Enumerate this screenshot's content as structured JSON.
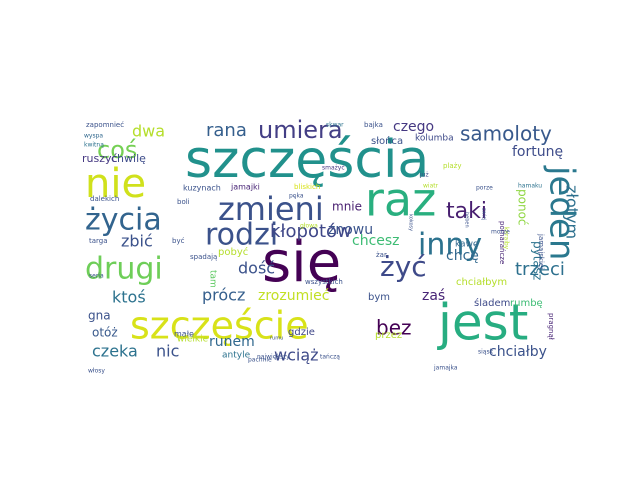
{
  "words": [
    {
      "text": "szczęścia",
      "color": "#21918c",
      "rotate": false
    },
    {
      "text": "się",
      "color": "#440154",
      "rotate": false
    },
    {
      "text": "jest",
      "color": "#27ad81",
      "rotate": false
    },
    {
      "text": "szczęście",
      "color": "#d8e219",
      "rotate": false
    },
    {
      "text": "raz",
      "color": "#29af7f",
      "rotate": false
    },
    {
      "text": "nie",
      "color": "#d0e11c",
      "rotate": false
    },
    {
      "text": "jeden",
      "color": "#2a788e",
      "rotate": true
    },
    {
      "text": "życia",
      "color": "#32648e",
      "rotate": false
    },
    {
      "text": "drugi",
      "color": "#6ece58",
      "rotate": false
    },
    {
      "text": "zmieni",
      "color": "#3b528b",
      "rotate": false
    },
    {
      "text": "rodzi",
      "color": "#3b528b",
      "rotate": false
    },
    {
      "text": "inny",
      "color": "#2c728e",
      "rotate": false
    },
    {
      "text": "umiera",
      "color": "#433e85",
      "rotate": false
    },
    {
      "text": "coś",
      "color": "#75d054",
      "rotate": false
    },
    {
      "text": "żyć",
      "color": "#3e4a89",
      "rotate": false
    },
    {
      "text": "taki",
      "color": "#481f70",
      "rotate": false
    },
    {
      "text": "bez",
      "color": "#440154",
      "rotate": false
    },
    {
      "text": "samoloty",
      "color": "#38598c",
      "rotate": false
    },
    {
      "text": "rana",
      "color": "#355f8d",
      "rotate": false
    },
    {
      "text": "dwa",
      "color": "#b5de2b",
      "rotate": false
    },
    {
      "text": "złotym",
      "color": "#2d708e",
      "rotate": true
    },
    {
      "text": "fortunę",
      "color": "#3e4c8a",
      "rotate": false
    },
    {
      "text": "czego",
      "color": "#453882",
      "rotate": false
    },
    {
      "text": "pytasz",
      "color": "#2c738e",
      "rotate": true
    },
    {
      "text": "ponoć",
      "color": "#90d743",
      "rotate": true
    },
    {
      "text": "trzeci",
      "color": "#2d708e",
      "rotate": false
    },
    {
      "text": "chcę",
      "color": "#31688e",
      "rotate": false
    },
    {
      "text": "znowu",
      "color": "#3a548c",
      "rotate": false
    },
    {
      "text": "chcesz",
      "color": "#3dbc74",
      "rotate": false
    },
    {
      "text": "kłopotów",
      "color": "#3f4788",
      "rotate": false
    },
    {
      "text": "zbić",
      "color": "#3b528b",
      "rotate": false
    },
    {
      "text": "dość",
      "color": "#3b528b",
      "rotate": false
    },
    {
      "text": "prócz",
      "color": "#355f8d",
      "rotate": false
    },
    {
      "text": "ktoś",
      "color": "#2c728e",
      "rotate": false
    },
    {
      "text": "czeka",
      "color": "#2c728e",
      "rotate": false
    },
    {
      "text": "nic",
      "color": "#3b528b",
      "rotate": false
    },
    {
      "text": "runem",
      "color": "#31688e",
      "rotate": false
    },
    {
      "text": "wciąż",
      "color": "#3e4a89",
      "rotate": false
    },
    {
      "text": "chciałby",
      "color": "#3b528b",
      "rotate": false
    },
    {
      "text": "zrozumieć",
      "color": "#c2df23",
      "rotate": false
    },
    {
      "text": "zaś",
      "color": "#482576",
      "rotate": false
    },
    {
      "text": "gna",
      "color": "#3b528b",
      "rotate": false
    },
    {
      "text": "otóż",
      "color": "#38598c",
      "rotate": false
    },
    {
      "text": "mnie",
      "color": "#481f70",
      "rotate": false
    },
    {
      "text": "chwilę",
      "color": "#3e4c8a",
      "rotate": false
    },
    {
      "text": "ruszyć",
      "color": "#453882",
      "rotate": false
    },
    {
      "text": "słońca",
      "color": "#3b528b",
      "rotate": false
    },
    {
      "text": "kolumba",
      "color": "#3e4a89",
      "rotate": false
    },
    {
      "text": "kawę",
      "color": "#31688e",
      "rotate": false
    },
    {
      "text": "śladem",
      "color": "#3e4a89",
      "rotate": false
    },
    {
      "text": "rumbę",
      "color": "#3dbc74",
      "rotate": false
    },
    {
      "text": "chciałbym",
      "color": "#b5de2b",
      "rotate": false
    },
    {
      "text": "bym",
      "color": "#3b528b",
      "rotate": false
    },
    {
      "text": "gdzie",
      "color": "#3f4788",
      "rotate": false
    },
    {
      "text": "przez",
      "color": "#b5de2b",
      "rotate": false
    },
    {
      "text": "pobyć",
      "color": "#b5de2b",
      "rotate": false
    },
    {
      "text": "tam",
      "color": "#5ec962",
      "rotate": true
    },
    {
      "text": "małe",
      "color": "#3b528b",
      "rotate": false
    },
    {
      "text": "wielkie",
      "color": "#b5de2b",
      "rotate": false
    },
    {
      "text": "antyle",
      "color": "#2c728e",
      "rotate": false
    },
    {
      "text": "kuzynach",
      "color": "#3b528b",
      "rotate": false
    },
    {
      "text": "jamajki",
      "color": "#482576",
      "rotate": false
    },
    {
      "text": "bliskich",
      "color": "#d8e219",
      "rotate": false
    },
    {
      "text": "bajka",
      "color": "#3b528b",
      "rotate": false
    },
    {
      "text": "zapomnieć",
      "color": "#3b528b",
      "rotate": false
    },
    {
      "text": "wyspa",
      "color": "#31688e",
      "rotate": false
    },
    {
      "text": "kwitną",
      "color": "#2c728e",
      "rotate": false
    },
    {
      "text": "skwar",
      "color": "#2c728e",
      "rotate": false
    },
    {
      "text": "smażyć",
      "color": "#453882",
      "rotate": false
    },
    {
      "text": "plaży",
      "color": "#b5de2b",
      "rotate": false
    },
    {
      "text": "już",
      "color": "#3e4a89",
      "rotate": false
    },
    {
      "text": "wiatr",
      "color": "#b5de2b",
      "rotate": false
    },
    {
      "text": "porze",
      "color": "#3b528b",
      "rotate": false
    },
    {
      "text": "hamaku",
      "color": "#2c728e",
      "rotate": false
    },
    {
      "text": "pomarańcze",
      "color": "#482576",
      "rotate": true
    },
    {
      "text": "karaiby",
      "color": "#b5de2b",
      "rotate": true
    },
    {
      "text": "morze",
      "color": "#3b528b",
      "rotate": false
    },
    {
      "text": "jamajskiej",
      "color": "#3b528b",
      "rotate": true
    },
    {
      "text": "pragnął",
      "color": "#482576",
      "rotate": true
    },
    {
      "text": "kokosy",
      "color": "#3b528b",
      "rotate": true
    },
    {
      "text": "dalekich",
      "color": "#3b528b",
      "rotate": false
    },
    {
      "text": "boli",
      "color": "#3b528b",
      "rotate": false
    },
    {
      "text": "targa",
      "color": "#3b528b",
      "rotate": false
    },
    {
      "text": "być",
      "color": "#3b528b",
      "rotate": false
    },
    {
      "text": "spadają",
      "color": "#3b528b",
      "rotate": false
    },
    {
      "text": "seria",
      "color": "#3b528b",
      "rotate": false
    },
    {
      "text": "włosy",
      "color": "#3b528b",
      "rotate": false
    },
    {
      "text": "pachnie",
      "color": "#3b528b",
      "rotate": false
    },
    {
      "text": "największy",
      "color": "#3b528b",
      "rotate": false
    },
    {
      "text": "tańczą",
      "color": "#3b528b",
      "rotate": false
    },
    {
      "text": "jamajka",
      "color": "#3b528b",
      "rotate": false
    },
    {
      "text": "wszystkich",
      "color": "#3b528b",
      "rotate": false
    },
    {
      "text": "siąsk",
      "color": "#3b528b",
      "rotate": false
    },
    {
      "text": "żar",
      "color": "#3b528b",
      "rotate": false
    },
    {
      "text": "głowa",
      "color": "#b5de2b",
      "rotate": false
    },
    {
      "text": "pęka",
      "color": "#3b528b",
      "rotate": false
    },
    {
      "text": "zwiej",
      "color": "#3b528b",
      "rotate": true
    },
    {
      "text": "bęben",
      "color": "#3b528b",
      "rotate": true
    },
    {
      "text": "rumu",
      "color": "#3b528b",
      "rotate": false
    }
  ]
}
